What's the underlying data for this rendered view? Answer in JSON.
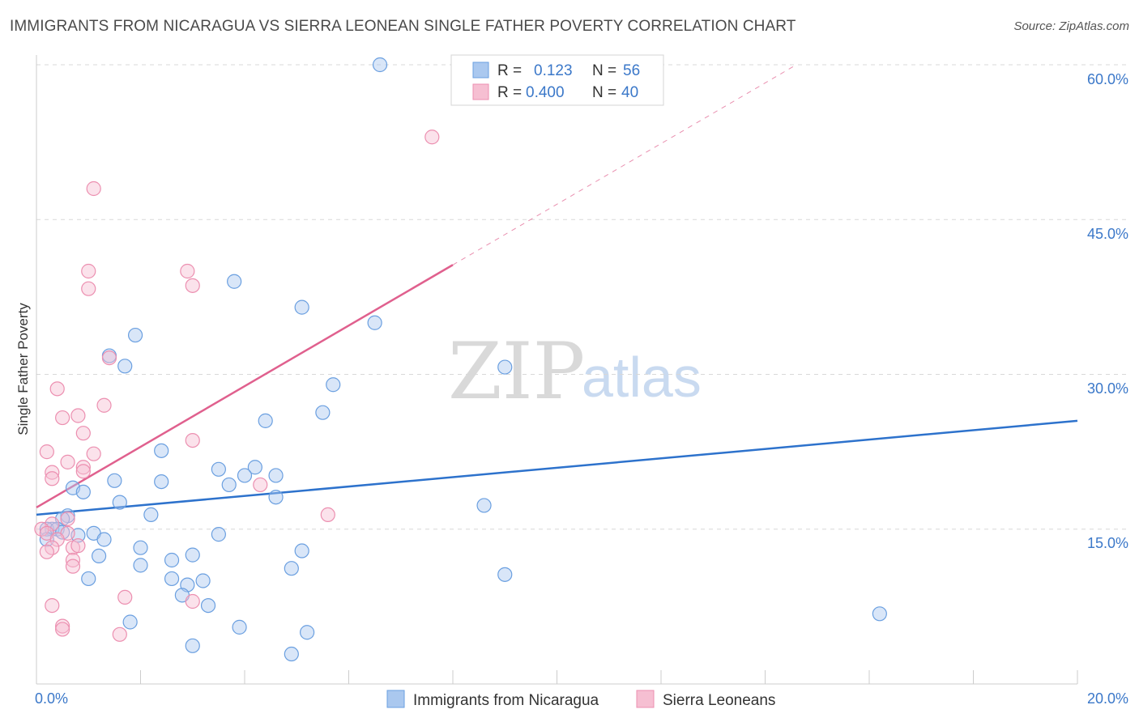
{
  "header": {
    "title": "IMMIGRANTS FROM NICARAGUA VS SIERRA LEONEAN SINGLE FATHER POVERTY CORRELATION CHART",
    "source": "Source: ZipAtlas.com"
  },
  "watermark": {
    "zip": "ZIP",
    "atlas": "atlas"
  },
  "legend": {
    "rows": [
      {
        "r_label": "R =",
        "r_value": "0.123",
        "n_label": "N =",
        "n_value": "56"
      },
      {
        "r_label": "R =",
        "r_value": "0.400",
        "n_label": "N =",
        "n_value": "40"
      }
    ]
  },
  "colors": {
    "blue_fill": "#aac8ef",
    "blue_stroke": "#6a9fe0",
    "blue_line": "#2d72cc",
    "pink_fill": "#f6bfd2",
    "pink_stroke": "#ec8fb0",
    "pink_line": "#e0608e",
    "grid": "#d8d8d8",
    "axis_text": "#3b78c9"
  },
  "chart_data": {
    "type": "scatter",
    "title": "IMMIGRANTS FROM NICARAGUA VS SIERRA LEONEAN SINGLE FATHER POVERTY CORRELATION CHART",
    "xlabel": "",
    "ylabel": "Single Father Poverty",
    "xlim": [
      0,
      20
    ],
    "ylim": [
      0,
      60
    ],
    "x_tick_labels": [
      "0.0%",
      "20.0%"
    ],
    "y_ticks": [
      15,
      30,
      45,
      60
    ],
    "y_tick_labels": [
      "15.0%",
      "30.0%",
      "45.0%",
      "60.0%"
    ],
    "legend_position": "top-center",
    "series": [
      {
        "name": "Immigrants from Nicaragua",
        "color": "blue",
        "trend": {
          "x": [
            0,
            20
          ],
          "y": [
            16.4,
            25.5
          ],
          "solid_to": 20
        },
        "points": [
          [
            6.6,
            60.0
          ],
          [
            3.8,
            39.0
          ],
          [
            5.1,
            36.5
          ],
          [
            6.5,
            35.0
          ],
          [
            1.9,
            33.8
          ],
          [
            1.4,
            31.8
          ],
          [
            1.7,
            30.8
          ],
          [
            9.0,
            30.7
          ],
          [
            5.7,
            29.0
          ],
          [
            5.5,
            26.3
          ],
          [
            4.4,
            25.5
          ],
          [
            2.4,
            22.6
          ],
          [
            3.5,
            20.8
          ],
          [
            4.2,
            21.0
          ],
          [
            4.6,
            20.2
          ],
          [
            4.0,
            20.2
          ],
          [
            1.5,
            19.7
          ],
          [
            2.4,
            19.6
          ],
          [
            3.7,
            19.3
          ],
          [
            0.7,
            19.0
          ],
          [
            0.9,
            18.6
          ],
          [
            4.6,
            18.1
          ],
          [
            1.6,
            17.6
          ],
          [
            8.6,
            17.3
          ],
          [
            2.2,
            16.4
          ],
          [
            0.6,
            16.3
          ],
          [
            0.5,
            16.0
          ],
          [
            0.3,
            15.0
          ],
          [
            0.2,
            15.0
          ],
          [
            0.4,
            15.0
          ],
          [
            0.5,
            14.7
          ],
          [
            1.1,
            14.6
          ],
          [
            3.5,
            14.5
          ],
          [
            0.8,
            14.4
          ],
          [
            1.3,
            14.0
          ],
          [
            0.2,
            14.0
          ],
          [
            2.0,
            13.2
          ],
          [
            5.1,
            12.9
          ],
          [
            3.0,
            12.5
          ],
          [
            1.2,
            12.4
          ],
          [
            2.6,
            12.0
          ],
          [
            2.0,
            11.5
          ],
          [
            4.9,
            11.2
          ],
          [
            2.6,
            10.2
          ],
          [
            9.0,
            10.6
          ],
          [
            1.0,
            10.2
          ],
          [
            3.2,
            10.0
          ],
          [
            2.9,
            9.6
          ],
          [
            2.8,
            8.6
          ],
          [
            3.3,
            7.6
          ],
          [
            16.2,
            6.8
          ],
          [
            1.8,
            6.0
          ],
          [
            3.9,
            5.5
          ],
          [
            5.2,
            5.0
          ],
          [
            3.0,
            3.7
          ],
          [
            4.9,
            2.9
          ]
        ]
      },
      {
        "name": "Sierra Leoneans",
        "color": "pink",
        "trend": {
          "x": [
            0,
            14.6
          ],
          "y": [
            17.1,
            60.0
          ],
          "solid_to": 8.0
        },
        "points": [
          [
            7.6,
            53.0
          ],
          [
            1.1,
            48.0
          ],
          [
            1.0,
            40.0
          ],
          [
            2.9,
            40.0
          ],
          [
            1.0,
            38.3
          ],
          [
            3.0,
            38.6
          ],
          [
            1.4,
            31.6
          ],
          [
            0.4,
            28.6
          ],
          [
            1.3,
            27.0
          ],
          [
            0.5,
            25.8
          ],
          [
            0.8,
            26.0
          ],
          [
            0.9,
            24.3
          ],
          [
            3.0,
            23.6
          ],
          [
            0.2,
            22.5
          ],
          [
            1.1,
            22.3
          ],
          [
            0.6,
            21.5
          ],
          [
            0.9,
            21.0
          ],
          [
            0.3,
            20.5
          ],
          [
            0.9,
            20.6
          ],
          [
            0.3,
            19.9
          ],
          [
            4.3,
            19.3
          ],
          [
            5.6,
            16.4
          ],
          [
            0.6,
            16.0
          ],
          [
            0.3,
            15.5
          ],
          [
            0.1,
            15.0
          ],
          [
            0.2,
            14.6
          ],
          [
            0.6,
            14.6
          ],
          [
            0.4,
            14.0
          ],
          [
            0.7,
            13.2
          ],
          [
            0.3,
            13.2
          ],
          [
            0.8,
            13.4
          ],
          [
            0.2,
            12.8
          ],
          [
            0.7,
            12.0
          ],
          [
            0.7,
            11.4
          ],
          [
            1.7,
            8.4
          ],
          [
            3.0,
            8.0
          ],
          [
            0.3,
            7.6
          ],
          [
            0.5,
            5.6
          ],
          [
            0.5,
            5.3
          ],
          [
            1.6,
            4.8
          ]
        ]
      }
    ]
  },
  "bottom_legend": {
    "items": [
      "Immigrants from Nicaragua",
      "Sierra Leoneans"
    ]
  }
}
